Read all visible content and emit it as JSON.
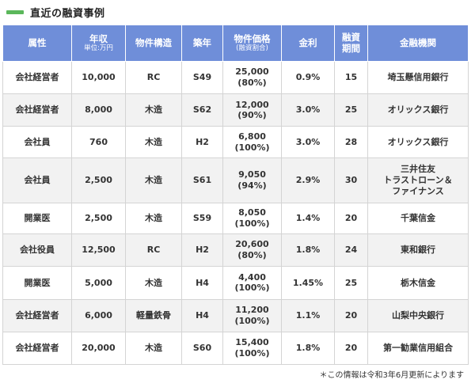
{
  "colors": {
    "accent": "#5bb75b",
    "header_bg": "#6f8ed9",
    "stripe": "#f2f2f2"
  },
  "title": "直近の融資事例",
  "columns": [
    {
      "label": "属性",
      "sub": ""
    },
    {
      "label": "年収",
      "sub": "単位:万円"
    },
    {
      "label": "物件構造",
      "sub": ""
    },
    {
      "label": "築年",
      "sub": ""
    },
    {
      "label": "物件価格",
      "sub": "(融資割合)"
    },
    {
      "label": "金利",
      "sub": ""
    },
    {
      "label": "融資\n期間",
      "sub": ""
    },
    {
      "label": "金融機関",
      "sub": ""
    }
  ],
  "rows": [
    {
      "attribute": "会社経営者",
      "income": "10,000",
      "structure": "RC",
      "built": "S49",
      "price": "25,000",
      "ratio": "(80%)",
      "rate": "0.9%",
      "term": "15",
      "bank": "埼玉懸信用銀行"
    },
    {
      "attribute": "会社経営者",
      "income": "8,000",
      "structure": "木造",
      "built": "S62",
      "price": "12,000",
      "ratio": "(90%)",
      "rate": "3.0%",
      "term": "25",
      "bank": "オリックス銀行"
    },
    {
      "attribute": "会社員",
      "income": "760",
      "structure": "木造",
      "built": "H2",
      "price": "6,800",
      "ratio": "(100%)",
      "rate": "3.0%",
      "term": "28",
      "bank": "オリックス銀行"
    },
    {
      "attribute": "会社員",
      "income": "2,500",
      "structure": "木造",
      "built": "S61",
      "price": "9,050",
      "ratio": "(94%)",
      "rate": "2.9%",
      "term": "30",
      "bank": "三井住友\nトラストローン＆\nファイナンス"
    },
    {
      "attribute": "開業医",
      "income": "2,500",
      "structure": "木造",
      "built": "S59",
      "price": "8,050",
      "ratio": "(100%)",
      "rate": "1.4%",
      "term": "20",
      "bank": "千葉信金"
    },
    {
      "attribute": "会社役員",
      "income": "12,500",
      "structure": "RC",
      "built": "H2",
      "price": "20,600",
      "ratio": "(80%)",
      "rate": "1.8%",
      "term": "24",
      "bank": "東和銀行"
    },
    {
      "attribute": "開業医",
      "income": "5,000",
      "structure": "木造",
      "built": "H4",
      "price": "4,400",
      "ratio": "(100%)",
      "rate": "1.45%",
      "term": "25",
      "bank": "栃木信金"
    },
    {
      "attribute": "会社経営者",
      "income": "6,000",
      "structure": "軽量鉄骨",
      "built": "H4",
      "price": "11,200",
      "ratio": "(100%)",
      "rate": "1.1%",
      "term": "20",
      "bank": "山梨中央銀行"
    },
    {
      "attribute": "会社経営者",
      "income": "20,000",
      "structure": "木造",
      "built": "S60",
      "price": "15,400",
      "ratio": "(100%)",
      "rate": "1.8%",
      "term": "20",
      "bank": "第一勧業信用組合"
    }
  ],
  "note": "＊この情報は令和3年6月更新によります"
}
